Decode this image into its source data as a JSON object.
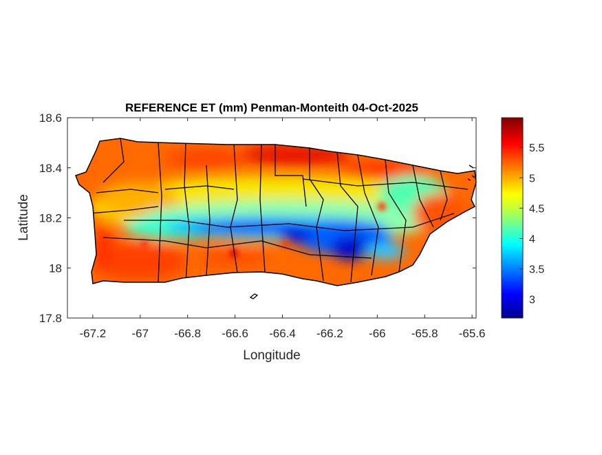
{
  "chart_data": {
    "type": "heatmap",
    "title": "REFERENCE ET (mm) Penman-Monteith 04-Oct-2025",
    "xlabel": "Longitude",
    "ylabel": "Latitude",
    "xlim": [
      -67.307,
      -65.583
    ],
    "ylim": [
      17.8,
      18.6
    ],
    "xticks": [
      -67.2,
      -67,
      -66.8,
      -66.6,
      -66.4,
      -66.2,
      -66,
      -65.8,
      -65.6
    ],
    "xtick_labels": [
      "-67.2",
      "-67",
      "-66.8",
      "-66.6",
      "-66.4",
      "-66.2",
      "-66",
      "-65.8",
      "-65.6"
    ],
    "yticks": [
      17.8,
      18,
      18.2,
      18.4,
      18.6
    ],
    "ytick_labels": [
      "17.8",
      "18",
      "18.2",
      "18.4",
      "18.6"
    ],
    "colormap": "jet",
    "colorbar": {
      "clim": [
        2.69,
        5.99
      ],
      "ticks": [
        3,
        3.5,
        4,
        4.5,
        5,
        5.5
      ],
      "tick_labels": [
        "3",
        "3.5",
        "4",
        "4.5",
        "5",
        "5.5"
      ]
    },
    "value_range": [
      2.7,
      5.99
    ],
    "grid": false
  }
}
